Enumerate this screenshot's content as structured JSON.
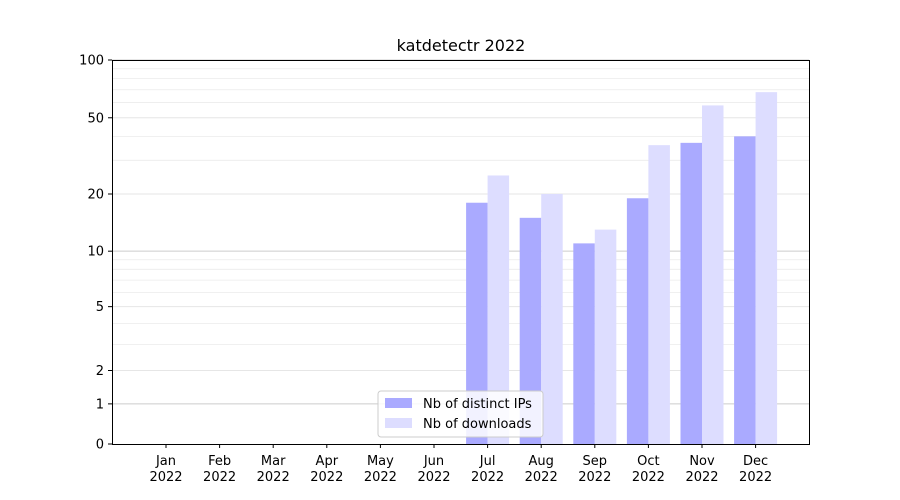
{
  "chart_data": {
    "type": "bar",
    "title": "katdetectr 2022",
    "xlabel": "",
    "ylabel": "",
    "yscale": "symlog",
    "ylim": [
      0,
      100
    ],
    "yticks": [
      0,
      1,
      2,
      5,
      10,
      20,
      50,
      100
    ],
    "ytick_labels": [
      "0",
      "1",
      "2",
      "5",
      "10",
      "20",
      "50",
      "100"
    ],
    "categories": [
      "Jan 2022",
      "Feb 2022",
      "Mar 2022",
      "Apr 2022",
      "May 2022",
      "Jun 2022",
      "Jul 2022",
      "Aug 2022",
      "Sep 2022",
      "Oct 2022",
      "Nov 2022",
      "Dec 2022"
    ],
    "category_lines": [
      [
        "Jan",
        "2022"
      ],
      [
        "Feb",
        "2022"
      ],
      [
        "Mar",
        "2022"
      ],
      [
        "Apr",
        "2022"
      ],
      [
        "May",
        "2022"
      ],
      [
        "Jun",
        "2022"
      ],
      [
        "Jul",
        "2022"
      ],
      [
        "Aug",
        "2022"
      ],
      [
        "Sep",
        "2022"
      ],
      [
        "Oct",
        "2022"
      ],
      [
        "Nov",
        "2022"
      ],
      [
        "Dec",
        "2022"
      ]
    ],
    "series": [
      {
        "name": "Nb of distinct IPs",
        "color": "#aaaaff",
        "values": [
          0,
          0,
          0,
          0,
          0,
          0,
          18,
          15,
          11,
          19,
          37,
          40
        ]
      },
      {
        "name": "Nb of downloads",
        "color": "#ddddff",
        "values": [
          0,
          0,
          0,
          0,
          0,
          0,
          25,
          20,
          13,
          36,
          58,
          68
        ]
      }
    ],
    "grid": true,
    "legend_position": "bottom-center"
  }
}
